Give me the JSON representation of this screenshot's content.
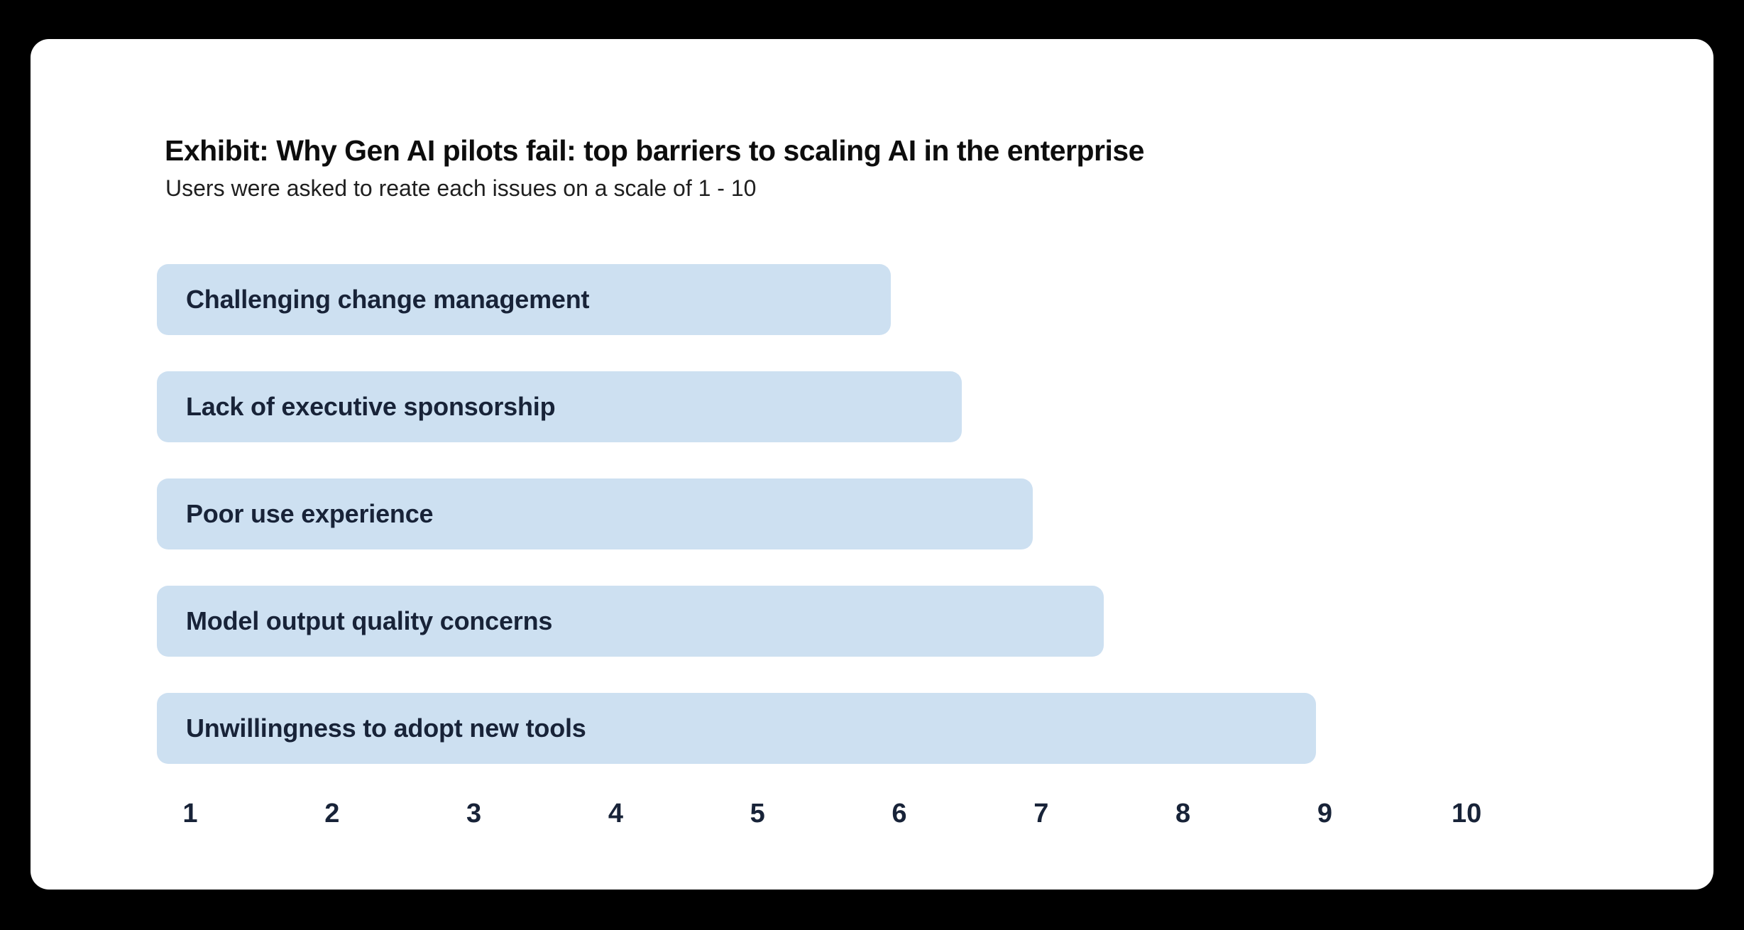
{
  "colors": {
    "background": "#000000",
    "card": "#ffffff",
    "bar_fill": "#cde0f1",
    "text_dark": "#182338"
  },
  "chart_data": {
    "type": "bar",
    "orientation": "horizontal",
    "title": "Exhibit: Why Gen AI pilots fail: top barriers to scaling AI in the enterprise",
    "subtitle": "Users were asked to reate each issues on a scale of 1 - 10",
    "categories": [
      "Challenging change management",
      "Lack of executive sponsorship",
      "Poor use experience",
      "Model output quality concerns",
      "Unwillingness to adopt new tools"
    ],
    "values": [
      6,
      6.5,
      7,
      7.5,
      9
    ],
    "x_ticks": [
      "1",
      "2",
      "3",
      "4",
      "5",
      "6",
      "7",
      "8",
      "9",
      "10"
    ],
    "xlim": [
      1,
      10
    ],
    "xlabel": "",
    "ylabel": "",
    "grid": false,
    "legend": false,
    "bar_labels_inside": true
  }
}
